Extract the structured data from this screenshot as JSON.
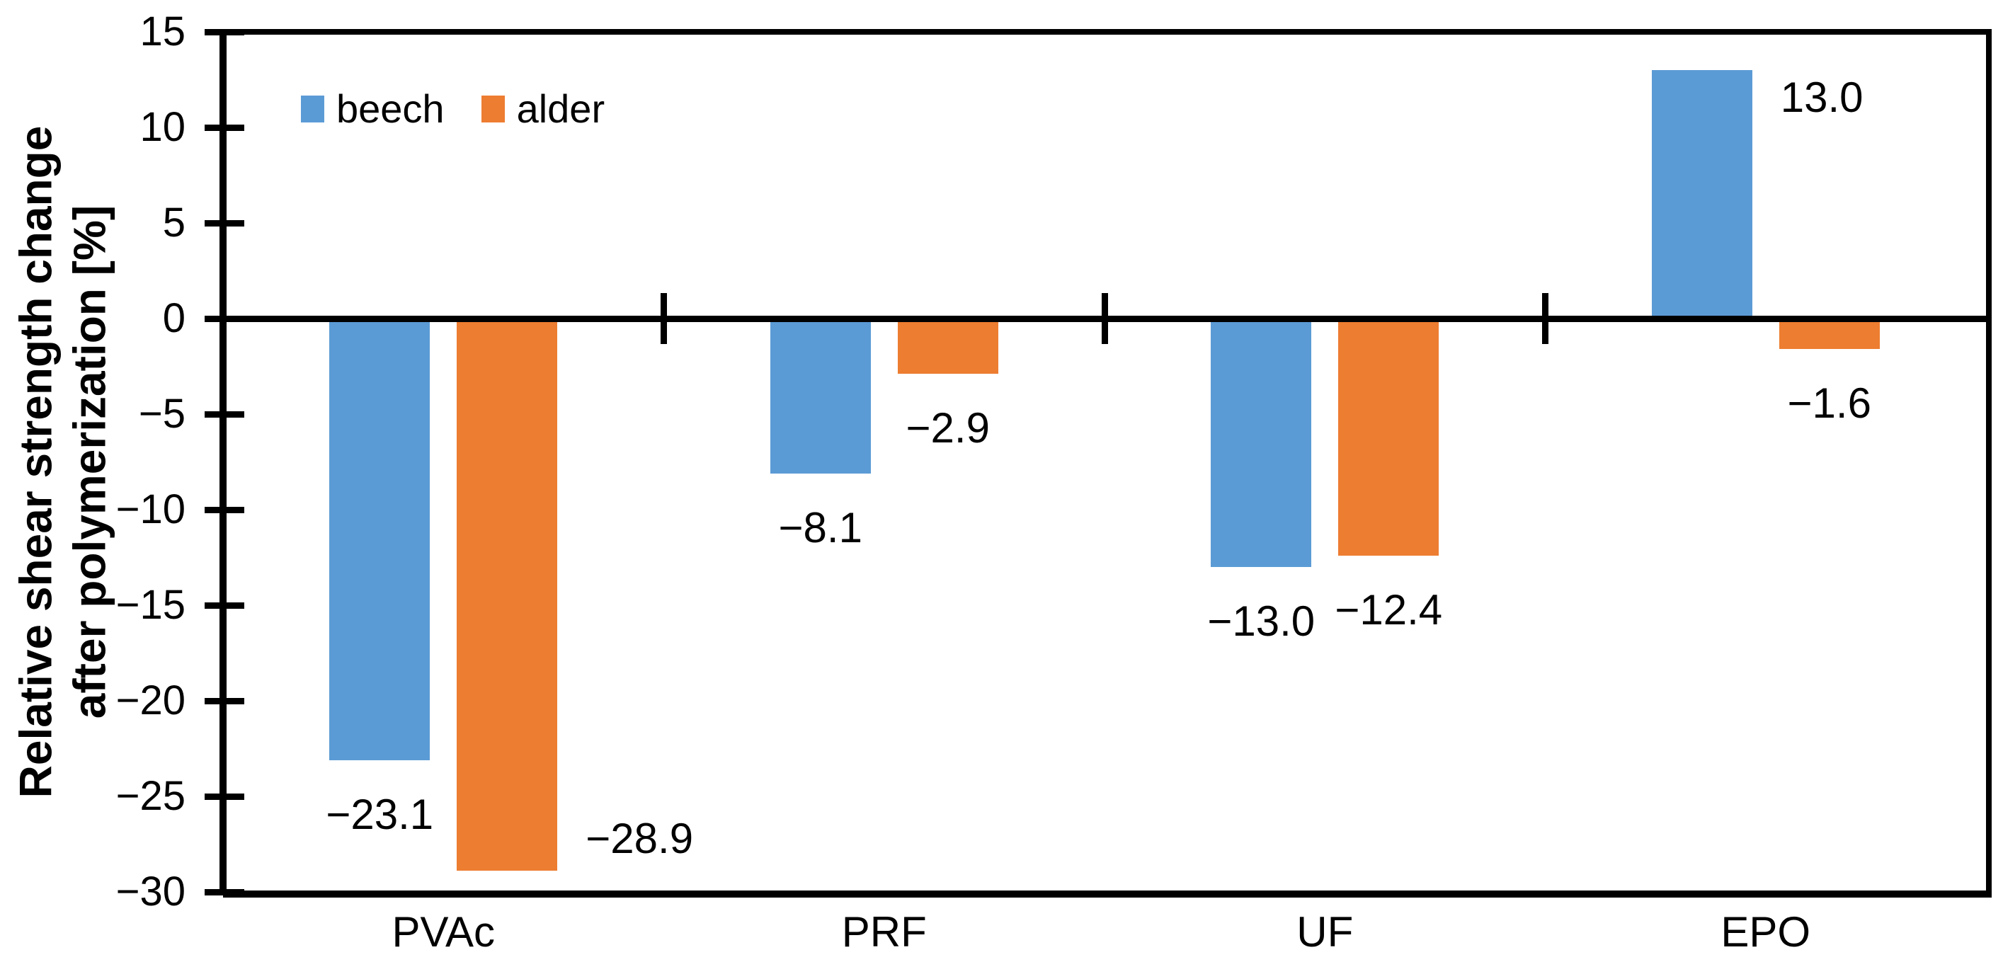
{
  "chart_data": {
    "type": "bar",
    "title": "",
    "categories": [
      "PVAc",
      "PRF",
      "UF",
      "EPO"
    ],
    "series": [
      {
        "name": "beech",
        "color": "#5B9BD5",
        "values": [
          -23.1,
          -8.1,
          -13.0,
          13.0
        ],
        "labels": [
          "−23.1",
          "−8.1",
          "−13.0",
          "13.0"
        ],
        "label_placement": [
          "below",
          "below",
          "below",
          "beside-top"
        ]
      },
      {
        "name": "alder",
        "color": "#ED7D31",
        "values": [
          -28.9,
          -2.9,
          -12.4,
          -1.6
        ],
        "labels": [
          "−28.9",
          "−2.9",
          "−12.4",
          "−1.6"
        ],
        "label_placement": [
          "beside-bottom",
          "below",
          "below",
          "below"
        ]
      }
    ],
    "ylabel": "Relative shear strength change after polymerization [%]",
    "ylabel_line1": "Relative shear strength change",
    "ylabel_line2": "after polymerization [%]",
    "ylim": [
      -30,
      15
    ],
    "ytick_values": [
      15,
      10,
      5,
      0,
      -5,
      -10,
      -15,
      -20,
      -25,
      -30
    ],
    "yticks": [
      "15",
      "10",
      "5",
      "0",
      "−5",
      "−10",
      "−15",
      "−20",
      "−25",
      "−30"
    ],
    "xlabel": "",
    "legend": {
      "position": "inside-top-left",
      "entries": [
        "beech",
        "alder"
      ]
    },
    "grid": false,
    "axis_color": "#000000",
    "text_color": "#000000",
    "background": "#FFFFFF"
  }
}
